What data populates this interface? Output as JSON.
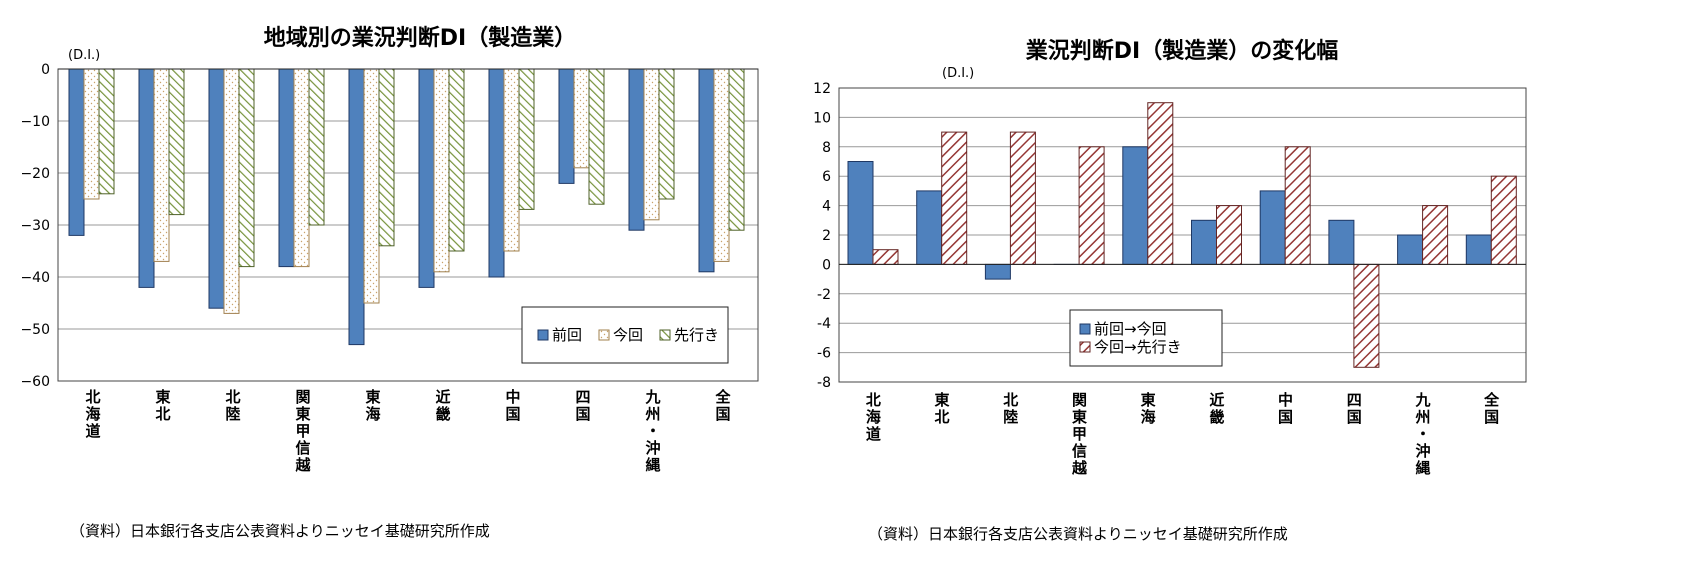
{
  "chart_data": [
    {
      "type": "bar",
      "title": "地域別の業況判断DI（製造業）",
      "ylabel": "(D.I.)",
      "ylim": [
        -60,
        0
      ],
      "yticks": [
        0,
        -10,
        -20,
        -30,
        -40,
        -50,
        -60
      ],
      "ytick_labels": [
        "0",
        "−10",
        "−20",
        "−30",
        "−40",
        "−50",
        "−60"
      ],
      "categories": [
        "北海道",
        "東北",
        "北陸",
        "関東甲信越",
        "東海",
        "近畿",
        "中国",
        "四国",
        "九州・沖縄",
        "全国"
      ],
      "series": [
        {
          "name": "前回",
          "values": [
            -32,
            -42,
            -46,
            -38,
            -53,
            -42,
            -40,
            -22,
            -31,
            -39
          ],
          "color": "#4f81bd",
          "pattern": "solid"
        },
        {
          "name": "今回",
          "values": [
            -25,
            -37,
            -47,
            -38,
            -45,
            -39,
            -35,
            -19,
            -29,
            -37
          ],
          "color": "#ffffff",
          "pattern": "dots"
        },
        {
          "name": "先行き",
          "values": [
            -24,
            -28,
            -38,
            -30,
            -34,
            -35,
            -27,
            -26,
            -25,
            -31
          ],
          "color": "#77933c",
          "pattern": "diagonal-green"
        }
      ],
      "grid": true,
      "legend_position": "bottom-right",
      "source": "（資料）日本銀行各支店公表資料よりニッセイ基礎研究所作成"
    },
    {
      "type": "bar",
      "title": "業況判断DI（製造業）の変化幅",
      "ylabel": "(D.I.)",
      "ylim": [
        -8,
        12
      ],
      "yticks": [
        12,
        10,
        8,
        6,
        4,
        2,
        0,
        -2,
        -4,
        -6,
        -8
      ],
      "ytick_labels": [
        "12",
        "10",
        "8",
        "6",
        "4",
        "2",
        "0",
        "-2",
        "-4",
        "-6",
        "-8"
      ],
      "categories": [
        "北海道",
        "東北",
        "北陸",
        "関東甲信越",
        "東海",
        "近畿",
        "中国",
        "四国",
        "九州・沖縄",
        "全国"
      ],
      "series": [
        {
          "name": "前回→今回",
          "values": [
            7,
            5,
            -1,
            0,
            8,
            3,
            5,
            3,
            2,
            2
          ],
          "color": "#4f81bd",
          "pattern": "solid"
        },
        {
          "name": "今回→先行き",
          "values": [
            1,
            9,
            9,
            8,
            11,
            4,
            8,
            -7,
            4,
            6
          ],
          "color": "#953735",
          "pattern": "diagonal-red"
        }
      ],
      "grid": true,
      "legend_position": "bottom-center",
      "source": "（資料）日本銀行各支店公表資料よりニッセイ基礎研究所作成"
    }
  ]
}
